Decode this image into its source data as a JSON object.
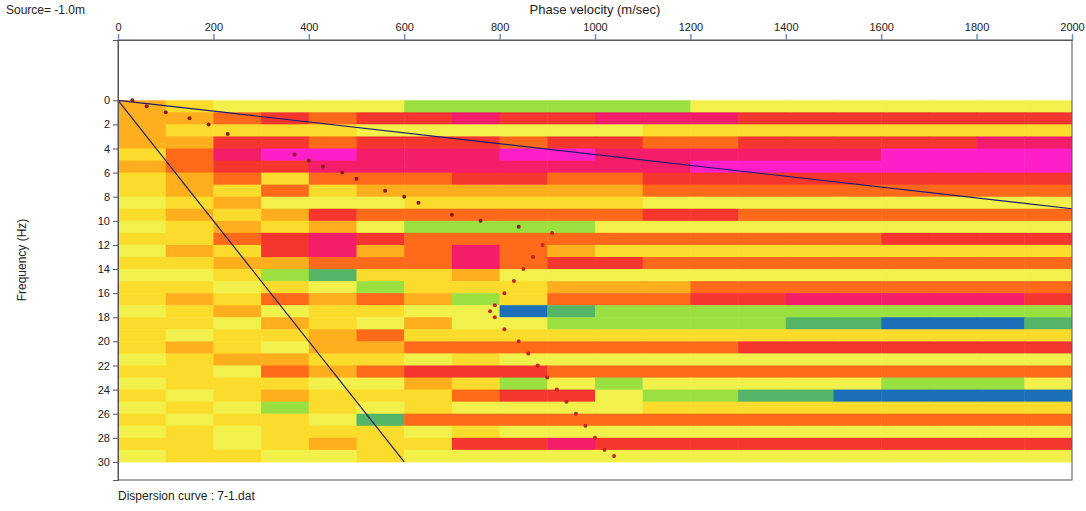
{
  "chart_data": {
    "type": "heatmap",
    "annotations": [
      "Source= -1.0m",
      "Dispersion curve : 7-1.dat"
    ],
    "x_label": "Phase velocity (m/sec)",
    "y_label": "Frequency (Hz)",
    "xlim": [
      0,
      2000
    ],
    "ylim": [
      -5,
      31.5
    ],
    "xticks": [
      0,
      200,
      400,
      600,
      800,
      1000,
      1200,
      1400,
      1600,
      1800,
      2000
    ],
    "yticks": [
      0,
      2,
      4,
      6,
      8,
      10,
      12,
      14,
      16,
      18,
      20,
      22,
      24,
      26,
      28,
      30
    ],
    "grid": false,
    "cell_x": [
      0,
      100,
      200,
      300,
      400,
      500,
      600,
      700,
      800,
      900,
      1000,
      1100,
      1200,
      1300,
      1400,
      1500,
      1600,
      1700,
      1800,
      1900,
      2000
    ],
    "cell_y": [
      0,
      1,
      2,
      3,
      4,
      5,
      6,
      7,
      8,
      9,
      10,
      11,
      12,
      13,
      14,
      15,
      16,
      17,
      18,
      19,
      20,
      21,
      22,
      23,
      24,
      25,
      26,
      27,
      28,
      29,
      30
    ],
    "cells": [
      [
        4,
        5,
        6,
        6,
        6,
        6,
        7,
        7,
        7,
        7,
        7,
        7,
        6,
        6,
        6,
        6,
        6,
        6,
        6,
        6
      ],
      [
        4,
        4,
        3,
        2,
        3,
        2,
        2,
        1,
        2,
        2,
        1,
        1,
        1,
        2,
        2,
        2,
        2,
        2,
        2,
        2
      ],
      [
        4,
        5,
        5,
        5,
        5,
        6,
        6,
        6,
        6,
        6,
        6,
        5,
        5,
        5,
        5,
        5,
        5,
        5,
        5,
        5
      ],
      [
        4,
        4,
        2,
        2,
        3,
        2,
        2,
        2,
        3,
        2,
        2,
        3,
        3,
        2,
        2,
        2,
        2,
        2,
        1,
        1
      ],
      [
        5,
        3,
        1,
        0,
        0,
        1,
        1,
        1,
        0,
        0,
        1,
        1,
        1,
        1,
        1,
        1,
        0,
        0,
        0,
        0
      ],
      [
        4,
        3,
        2,
        2,
        1,
        1,
        1,
        1,
        1,
        1,
        1,
        1,
        0,
        0,
        0,
        0,
        0,
        0,
        0,
        0
      ],
      [
        5,
        4,
        3,
        5,
        3,
        3,
        3,
        2,
        2,
        3,
        3,
        2,
        2,
        2,
        2,
        2,
        2,
        2,
        2,
        2
      ],
      [
        5,
        4,
        5,
        3,
        5,
        4,
        4,
        4,
        4,
        4,
        4,
        3,
        3,
        3,
        3,
        3,
        3,
        3,
        3,
        3
      ],
      [
        6,
        5,
        4,
        6,
        6,
        6,
        5,
        5,
        5,
        5,
        5,
        6,
        6,
        6,
        6,
        6,
        6,
        6,
        6,
        6
      ],
      [
        5,
        4,
        5,
        4,
        2,
        3,
        3,
        3,
        3,
        3,
        3,
        2,
        2,
        3,
        3,
        3,
        3,
        3,
        3,
        3
      ],
      [
        6,
        5,
        4,
        5,
        4,
        6,
        7,
        7,
        7,
        7,
        6,
        6,
        6,
        6,
        6,
        6,
        6,
        6,
        6,
        6
      ],
      [
        5,
        5,
        3,
        2,
        1,
        2,
        3,
        3,
        3,
        3,
        3,
        3,
        3,
        3,
        3,
        3,
        2,
        2,
        2,
        2
      ],
      [
        6,
        4,
        5,
        2,
        1,
        4,
        3,
        1,
        3,
        4,
        5,
        5,
        5,
        5,
        5,
        5,
        5,
        5,
        5,
        5
      ],
      [
        5,
        5,
        4,
        4,
        3,
        3,
        3,
        1,
        3,
        2,
        2,
        3,
        3,
        3,
        3,
        3,
        3,
        3,
        3,
        3
      ],
      [
        6,
        6,
        5,
        7,
        8,
        5,
        5,
        4,
        6,
        6,
        6,
        6,
        6,
        6,
        6,
        6,
        6,
        6,
        6,
        6
      ],
      [
        5,
        5,
        6,
        5,
        6,
        7,
        5,
        5,
        5,
        4,
        4,
        4,
        3,
        3,
        3,
        3,
        3,
        3,
        3,
        3
      ],
      [
        5,
        4,
        5,
        3,
        4,
        3,
        4,
        7,
        5,
        3,
        3,
        3,
        2,
        2,
        1,
        1,
        1,
        1,
        1,
        2
      ],
      [
        6,
        5,
        4,
        6,
        5,
        5,
        6,
        6,
        9,
        8,
        7,
        7,
        7,
        7,
        7,
        7,
        7,
        7,
        7,
        7
      ],
      [
        5,
        5,
        6,
        4,
        5,
        6,
        4,
        6,
        6,
        7,
        7,
        7,
        7,
        7,
        8,
        8,
        9,
        9,
        9,
        8
      ],
      [
        5,
        6,
        5,
        5,
        4,
        3,
        5,
        5,
        5,
        5,
        5,
        5,
        5,
        5,
        5,
        5,
        5,
        5,
        5,
        5
      ],
      [
        5,
        4,
        5,
        6,
        4,
        4,
        3,
        3,
        3,
        3,
        3,
        3,
        3,
        2,
        2,
        2,
        2,
        2,
        2,
        2
      ],
      [
        6,
        5,
        4,
        4,
        5,
        5,
        6,
        5,
        6,
        6,
        6,
        6,
        6,
        6,
        6,
        6,
        6,
        6,
        6,
        6
      ],
      [
        5,
        5,
        6,
        3,
        4,
        3,
        2,
        2,
        2,
        3,
        3,
        3,
        3,
        3,
        3,
        3,
        3,
        3,
        3,
        3
      ],
      [
        6,
        5,
        5,
        5,
        6,
        6,
        4,
        5,
        7,
        6,
        7,
        6,
        6,
        6,
        6,
        6,
        7,
        7,
        7,
        6
      ],
      [
        5,
        6,
        5,
        4,
        5,
        5,
        5,
        3,
        2,
        2,
        6,
        7,
        7,
        8,
        8,
        9,
        9,
        9,
        9,
        9
      ],
      [
        6,
        5,
        6,
        7,
        5,
        6,
        5,
        6,
        6,
        6,
        6,
        5,
        5,
        5,
        5,
        5,
        5,
        5,
        5,
        5
      ],
      [
        5,
        6,
        5,
        5,
        6,
        8,
        3,
        3,
        3,
        3,
        3,
        3,
        3,
        3,
        3,
        3,
        3,
        3,
        3,
        3
      ],
      [
        6,
        5,
        6,
        5,
        5,
        5,
        6,
        5,
        6,
        6,
        6,
        6,
        6,
        6,
        6,
        6,
        6,
        6,
        6,
        6
      ],
      [
        5,
        5,
        6,
        5,
        4,
        5,
        5,
        2,
        2,
        1,
        2,
        2,
        2,
        2,
        2,
        2,
        2,
        2,
        2,
        2
      ],
      [
        6,
        5,
        5,
        6,
        6,
        5,
        6,
        6,
        6,
        6,
        6,
        6,
        6,
        6,
        6,
        6,
        6,
        6,
        6,
        6
      ]
    ],
    "series": [
      {
        "type": "line",
        "color": "#1c1c6e",
        "line_style": "solid",
        "x": [
          0,
          2000
        ],
        "values": [
          0,
          9
        ]
      },
      {
        "type": "line",
        "color": "#1c1c6e",
        "line_style": "solid",
        "x": [
          0,
          600
        ],
        "values": [
          0,
          30
        ]
      },
      {
        "type": "scatter",
        "color": "#8b1a1a",
        "marker": "circle",
        "x": [
          30,
          60,
          100,
          150,
          190,
          230,
          370,
          400,
          430,
          470,
          500,
          560,
          600,
          630,
          700,
          760,
          840
        ],
        "values": [
          0,
          0.5,
          1,
          1.5,
          2,
          2.8,
          4.5,
          5,
          5.5,
          6,
          6.5,
          7.5,
          8,
          8.5,
          9.5,
          10,
          10.5
        ]
      },
      {
        "type": "scatter",
        "color": "#c0281e",
        "marker": "circle",
        "x": [
          910,
          890,
          870,
          850,
          830,
          810,
          790,
          780,
          790,
          810,
          840,
          860,
          880,
          900,
          920,
          940,
          960,
          980,
          1000,
          1020,
          1040
        ],
        "values": [
          11,
          12,
          13,
          14,
          15,
          16,
          17,
          17.5,
          18,
          19,
          20,
          21,
          22,
          23,
          24,
          25,
          26,
          27,
          28,
          29,
          29.5
        ]
      }
    ]
  }
}
